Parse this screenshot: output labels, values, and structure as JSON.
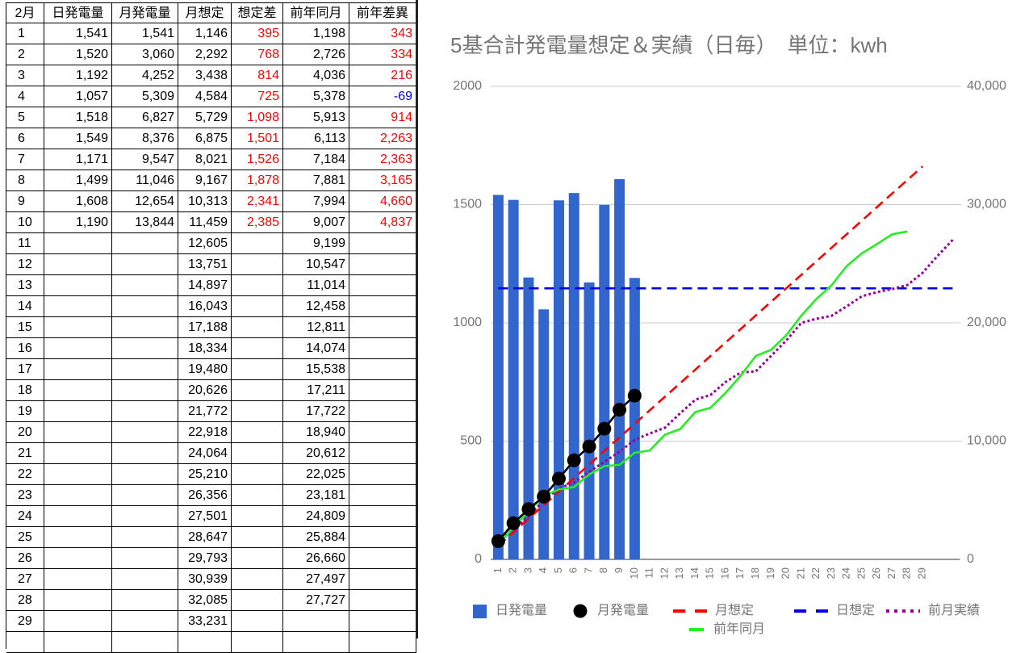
{
  "table": {
    "header": [
      "2月",
      "日発電量",
      "月発電量",
      "月想定",
      "想定差",
      "前年同月",
      "前年差異"
    ],
    "rows": [
      [
        "1",
        "1,541",
        "1,541",
        "1,146",
        "395",
        "1,198",
        "343"
      ],
      [
        "2",
        "1,520",
        "3,060",
        "2,292",
        "768",
        "2,726",
        "334"
      ],
      [
        "3",
        "1,192",
        "4,252",
        "3,438",
        "814",
        "4,036",
        "216"
      ],
      [
        "4",
        "1,057",
        "5,309",
        "4,584",
        "725",
        "5,378",
        "-69"
      ],
      [
        "5",
        "1,518",
        "6,827",
        "5,729",
        "1,098",
        "5,913",
        "914"
      ],
      [
        "6",
        "1,549",
        "8,376",
        "6,875",
        "1,501",
        "6,113",
        "2,263"
      ],
      [
        "7",
        "1,171",
        "9,547",
        "8,021",
        "1,526",
        "7,184",
        "2,363"
      ],
      [
        "8",
        "1,499",
        "11,046",
        "9,167",
        "1,878",
        "7,881",
        "3,165"
      ],
      [
        "9",
        "1,608",
        "12,654",
        "10,313",
        "2,341",
        "7,994",
        "4,660"
      ],
      [
        "10",
        "1,190",
        "13,844",
        "11,459",
        "2,385",
        "9,007",
        "4,837"
      ],
      [
        "11",
        null,
        null,
        "12,605",
        null,
        "9,199",
        null
      ],
      [
        "12",
        null,
        null,
        "13,751",
        null,
        "10,547",
        null
      ],
      [
        "13",
        null,
        null,
        "14,897",
        null,
        "11,014",
        null
      ],
      [
        "14",
        null,
        null,
        "16,043",
        null,
        "12,458",
        null
      ],
      [
        "15",
        null,
        null,
        "17,188",
        null,
        "12,811",
        null
      ],
      [
        "16",
        null,
        null,
        "18,334",
        null,
        "14,074",
        null
      ],
      [
        "17",
        null,
        null,
        "19,480",
        null,
        "15,538",
        null
      ],
      [
        "18",
        null,
        null,
        "20,626",
        null,
        "17,211",
        null
      ],
      [
        "19",
        null,
        null,
        "21,772",
        null,
        "17,722",
        null
      ],
      [
        "20",
        null,
        null,
        "22,918",
        null,
        "18,940",
        null
      ],
      [
        "21",
        null,
        null,
        "24,064",
        null,
        "20,612",
        null
      ],
      [
        "22",
        null,
        null,
        "25,210",
        null,
        "22,025",
        null
      ],
      [
        "23",
        null,
        null,
        "26,356",
        null,
        "23,181",
        null
      ],
      [
        "24",
        null,
        null,
        "27,501",
        null,
        "24,809",
        null
      ],
      [
        "25",
        null,
        null,
        "28,647",
        null,
        "25,884",
        null
      ],
      [
        "26",
        null,
        null,
        "29,793",
        null,
        "26,660",
        null
      ],
      [
        "27",
        null,
        null,
        "30,939",
        null,
        "27,497",
        null
      ],
      [
        "28",
        null,
        null,
        "32,085",
        null,
        "27,727",
        null
      ],
      [
        "29",
        null,
        null,
        "33,231",
        null,
        null,
        null
      ]
    ],
    "column_colors": [
      null,
      null,
      null,
      null,
      "#ff0000",
      null,
      "#ff0000"
    ],
    "negative_color": "#0000ff"
  },
  "chart_data": {
    "type": "combo",
    "title": "5基合計発電量想定＆実績（日毎）　単位：kwh",
    "categories": [
      "1",
      "2",
      "3",
      "4",
      "5",
      "6",
      "7",
      "8",
      "9",
      "10",
      "11",
      "12",
      "13",
      "14",
      "15",
      "16",
      "17",
      "18",
      "19",
      "20",
      "21",
      "22",
      "23",
      "24",
      "25",
      "26",
      "27",
      "28",
      "29",
      null,
      null
    ],
    "ylim": [
      0,
      2000
    ],
    "yticks": [
      0,
      500,
      1000,
      1500,
      2000
    ],
    "y2lim": [
      0,
      40000
    ],
    "y2ticks": [
      0,
      {
        "value": 10000,
        "label": "10,000"
      },
      {
        "value": 20000,
        "label": "20,000"
      },
      {
        "value": 30000,
        "label": "30,000"
      },
      {
        "value": 40000,
        "label": "40,000"
      }
    ],
    "grid": true,
    "legend": "bottom",
    "series": [
      {
        "name": "日発電量",
        "type": "bar",
        "color": "#3366cc",
        "axis": "y",
        "values": [
          1541,
          1520,
          1192,
          1057,
          1518,
          1549,
          1171,
          1499,
          1608,
          1190,
          null,
          null,
          null,
          null,
          null,
          null,
          null,
          null,
          null,
          null,
          null,
          null,
          null,
          null,
          null,
          null,
          null,
          null,
          null,
          null,
          null
        ]
      },
      {
        "name": "月発電量",
        "type": "line",
        "dash": "solid",
        "markers": true,
        "color": "#000000",
        "axis": "y2",
        "values": [
          1541,
          3060,
          4252,
          5309,
          6827,
          8376,
          9547,
          11046,
          12654,
          13844,
          null,
          null,
          null,
          null,
          null,
          null,
          null,
          null,
          null,
          null,
          null,
          null,
          null,
          null,
          null,
          null,
          null,
          null,
          null,
          null,
          null
        ]
      },
      {
        "name": "月想定",
        "type": "line",
        "dash": "dashed",
        "color": "#ff0000",
        "axis": "y2",
        "values": [
          1146,
          2292,
          3438,
          4584,
          5729,
          6875,
          8021,
          9167,
          10313,
          11459,
          12605,
          13751,
          14897,
          16043,
          17188,
          18334,
          19480,
          20626,
          21772,
          22918,
          24064,
          25210,
          26356,
          27501,
          28647,
          29793,
          30939,
          32085,
          33231,
          null,
          null
        ]
      },
      {
        "name": "日想定",
        "type": "line",
        "dash": "dashed",
        "color": "#0000ee",
        "axis": "y",
        "values": [
          1146,
          1146,
          1146,
          1146,
          1146,
          1146,
          1146,
          1146,
          1146,
          1146,
          1146,
          1146,
          1146,
          1146,
          1146,
          1146,
          1146,
          1146,
          1146,
          1146,
          1146,
          1146,
          1146,
          1146,
          1146,
          1146,
          1146,
          1146,
          1146,
          1146,
          1146
        ]
      },
      {
        "name": "前月実績",
        "type": "line",
        "dash": "dotted",
        "color": "#990099",
        "axis": "y2",
        "values": [
          1430,
          2600,
          3600,
          5000,
          6000,
          6500,
          7400,
          8250,
          9100,
          10100,
          10650,
          11130,
          12350,
          13500,
          13900,
          15000,
          15800,
          15900,
          17200,
          18500,
          20000,
          20350,
          20600,
          21400,
          22250,
          22600,
          22870,
          23200,
          24230,
          25670,
          27030
        ]
      },
      {
        "name": "前年同月",
        "type": "line",
        "dash": "solid",
        "color": "#22ee22",
        "axis": "y2",
        "values": [
          1198,
          2726,
          4036,
          5378,
          5913,
          6113,
          7184,
          7881,
          7994,
          9007,
          9199,
          10547,
          11014,
          12458,
          12811,
          14074,
          15538,
          17211,
          17722,
          18940,
          20612,
          22025,
          23181,
          24809,
          25884,
          26660,
          27497,
          27727,
          null,
          null,
          null
        ]
      }
    ]
  }
}
